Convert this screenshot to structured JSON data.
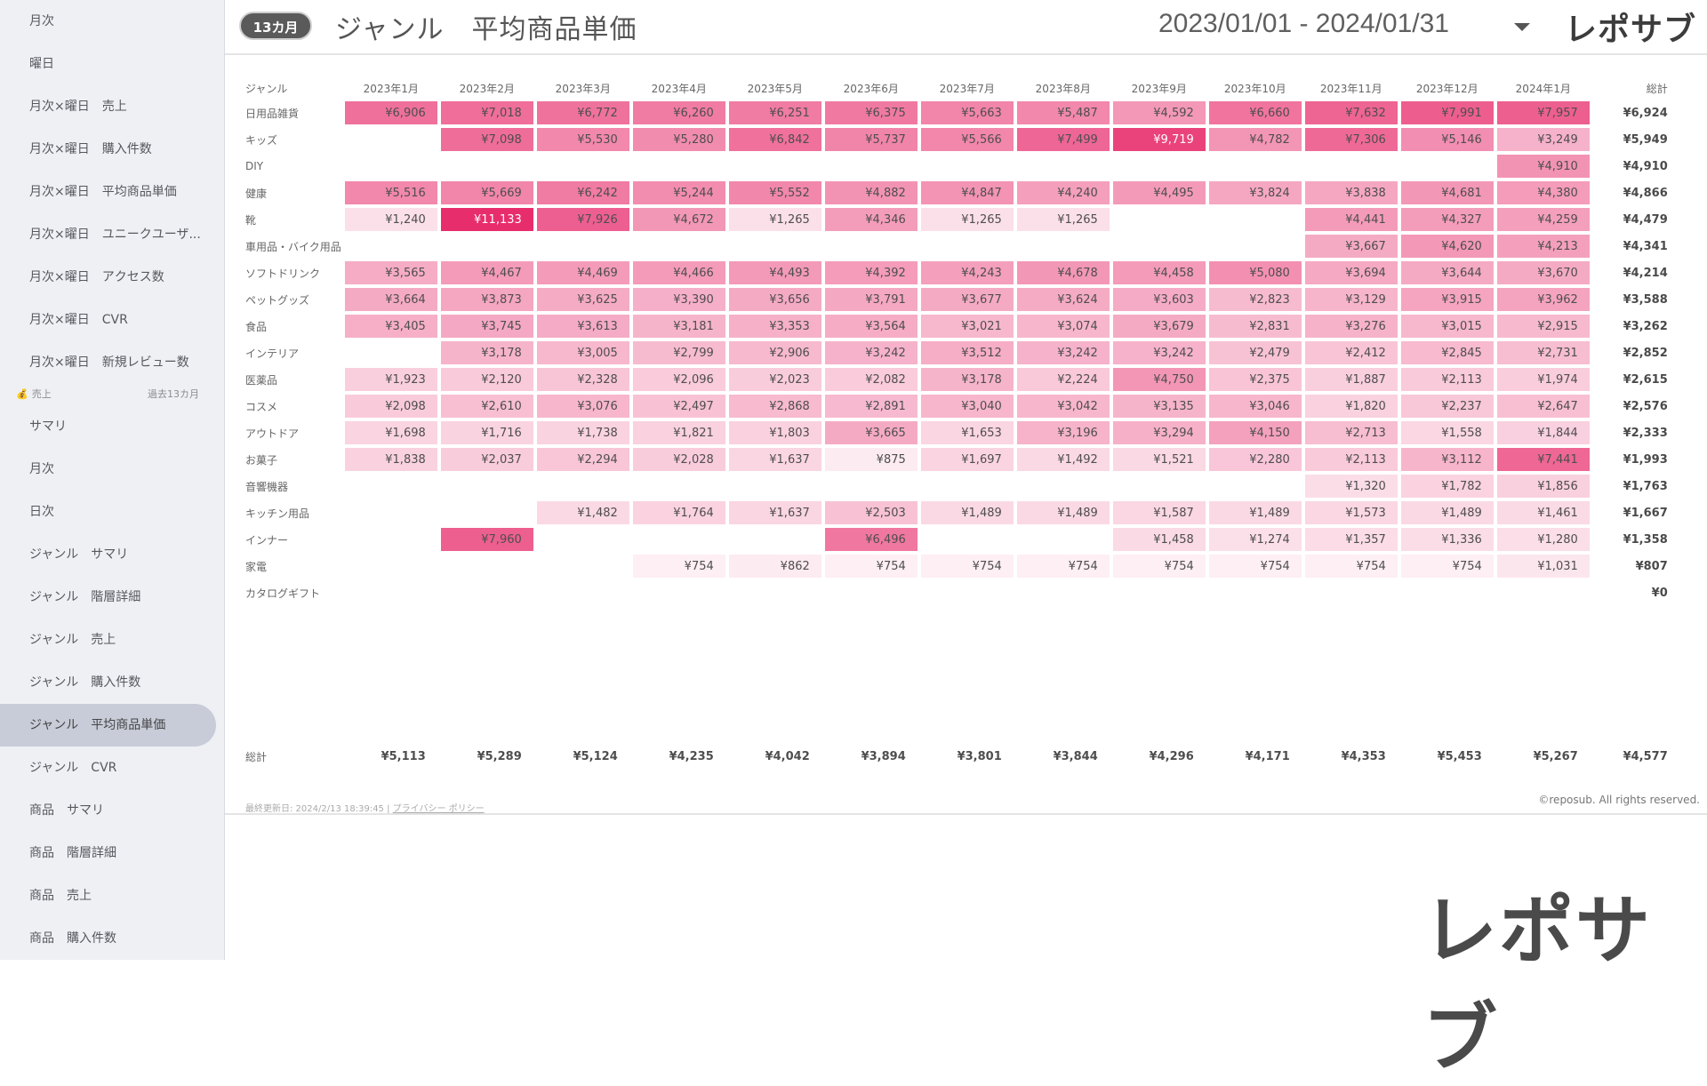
{
  "sidebar": {
    "items_top": [
      {
        "label": "月次"
      },
      {
        "label": "曜日"
      },
      {
        "label": "月次×曜日　売上"
      },
      {
        "label": "月次×曜日　購入件数"
      },
      {
        "label": "月次×曜日　平均商品単価"
      },
      {
        "label": "月次×曜日　ユニークユーザ..."
      },
      {
        "label": "月次×曜日　アクセス数"
      },
      {
        "label": "月次×曜日　CVR"
      },
      {
        "label": "月次×曜日　新規レビュー数"
      }
    ],
    "section": {
      "label": "売上",
      "sub": "過去13カ月"
    },
    "items_bottom": [
      {
        "label": "サマリ"
      },
      {
        "label": "月次"
      },
      {
        "label": "日次"
      },
      {
        "label": "ジャンル　サマリ"
      },
      {
        "label": "ジャンル　階層詳細"
      },
      {
        "label": "ジャンル　売上"
      },
      {
        "label": "ジャンル　購入件数"
      },
      {
        "label": "ジャンル　平均商品単価",
        "active": true
      },
      {
        "label": "ジャンル　CVR"
      },
      {
        "label": "商品　サマリ"
      },
      {
        "label": "商品　階層詳細"
      },
      {
        "label": "商品　売上"
      },
      {
        "label": "商品　購入件数"
      }
    ]
  },
  "header": {
    "badge": "13カ月",
    "title": "ジャンル　平均商品単価",
    "date_range": "2023/01/01 - 2024/01/31",
    "brand": "レポサブ"
  },
  "table": {
    "genre_header": "ジャンル",
    "total_header": "総計",
    "months": [
      "2023年1月",
      "2023年2月",
      "2023年3月",
      "2023年4月",
      "2023年5月",
      "2023年6月",
      "2023年7月",
      "2023年8月",
      "2023年9月",
      "2023年10月",
      "2023年11月",
      "2023年12月",
      "2024年1月"
    ],
    "rows": [
      {
        "genre": "日用品雑貨",
        "values": [
          6906,
          7018,
          6772,
          6260,
          6251,
          6375,
          5663,
          5487,
          4592,
          6660,
          7632,
          7991,
          7957
        ],
        "total": "¥6,924"
      },
      {
        "genre": "キッズ",
        "values": [
          null,
          7098,
          5530,
          5280,
          6842,
          5737,
          5566,
          7499,
          9719,
          4782,
          7306,
          5146,
          3249
        ],
        "total": "¥5,949"
      },
      {
        "genre": "DIY",
        "values": [
          null,
          null,
          null,
          null,
          null,
          null,
          null,
          null,
          null,
          null,
          null,
          null,
          4910
        ],
        "total": "¥4,910"
      },
      {
        "genre": "健康",
        "values": [
          5516,
          5669,
          6242,
          5244,
          5552,
          4882,
          4847,
          4240,
          4495,
          3824,
          3838,
          4681,
          4380
        ],
        "total": "¥4,866"
      },
      {
        "genre": "靴",
        "values": [
          1240,
          11133,
          7926,
          4672,
          1265,
          4346,
          1265,
          1265,
          null,
          null,
          4441,
          4327,
          4259
        ],
        "total": "¥4,479"
      },
      {
        "genre": "車用品・バイク用品",
        "values": [
          null,
          null,
          null,
          null,
          null,
          null,
          null,
          null,
          null,
          null,
          3667,
          4620,
          4213
        ],
        "total": "¥4,341"
      },
      {
        "genre": "ソフトドリンク",
        "values": [
          3565,
          4467,
          4469,
          4466,
          4493,
          4392,
          4243,
          4678,
          4458,
          5080,
          3694,
          3644,
          3670
        ],
        "total": "¥4,214"
      },
      {
        "genre": "ペットグッズ",
        "values": [
          3664,
          3873,
          3625,
          3390,
          3656,
          3791,
          3677,
          3624,
          3603,
          2823,
          3129,
          3915,
          3962
        ],
        "total": "¥3,588"
      },
      {
        "genre": "食品",
        "values": [
          3405,
          3745,
          3613,
          3181,
          3353,
          3564,
          3021,
          3074,
          3679,
          2831,
          3276,
          3015,
          2915
        ],
        "total": "¥3,262"
      },
      {
        "genre": "インテリア",
        "values": [
          null,
          3178,
          3005,
          2799,
          2906,
          3242,
          3512,
          3242,
          3242,
          2479,
          2412,
          2845,
          2731
        ],
        "total": "¥2,852"
      },
      {
        "genre": "医薬品",
        "values": [
          1923,
          2120,
          2328,
          2096,
          2023,
          2082,
          3178,
          2224,
          4750,
          2375,
          1887,
          2113,
          1974
        ],
        "total": "¥2,615"
      },
      {
        "genre": "コスメ",
        "values": [
          2098,
          2610,
          3076,
          2497,
          2868,
          2891,
          3040,
          3042,
          3135,
          3046,
          1820,
          2237,
          2647
        ],
        "total": "¥2,576"
      },
      {
        "genre": "アウトドア",
        "values": [
          1698,
          1716,
          1738,
          1821,
          1803,
          3665,
          1653,
          3196,
          3294,
          4150,
          2713,
          1558,
          1844
        ],
        "total": "¥2,333"
      },
      {
        "genre": "お菓子",
        "values": [
          1838,
          2037,
          2294,
          2028,
          1637,
          875,
          1697,
          1492,
          1521,
          2280,
          2113,
          3112,
          7441
        ],
        "total": "¥1,993"
      },
      {
        "genre": "音響機器",
        "values": [
          null,
          null,
          null,
          null,
          null,
          null,
          null,
          null,
          null,
          null,
          1320,
          1782,
          1856
        ],
        "total": "¥1,763"
      },
      {
        "genre": "キッチン用品",
        "values": [
          null,
          null,
          1482,
          1764,
          1637,
          2503,
          1489,
          1489,
          1587,
          1489,
          1573,
          1489,
          1461
        ],
        "total": "¥1,667"
      },
      {
        "genre": "インナー",
        "values": [
          null,
          7960,
          null,
          null,
          null,
          6496,
          null,
          null,
          1458,
          1274,
          1357,
          1336,
          1280
        ],
        "total": "¥1,358"
      },
      {
        "genre": "家電",
        "values": [
          null,
          null,
          null,
          754,
          862,
          754,
          754,
          754,
          754,
          754,
          754,
          754,
          1031
        ],
        "total": "¥807"
      },
      {
        "genre": "カタログギフト",
        "values": [
          null,
          null,
          null,
          null,
          null,
          null,
          null,
          null,
          null,
          null,
          null,
          null,
          null
        ],
        "total": "¥0"
      }
    ],
    "total_row": {
      "label": "総計",
      "values": [
        "¥5,113",
        "¥5,289",
        "¥5,124",
        "¥4,235",
        "¥4,042",
        "¥3,894",
        "¥3,801",
        "¥3,844",
        "¥4,296",
        "¥4,171",
        "¥4,353",
        "¥5,453",
        "¥5,267"
      ],
      "total": "¥4,577"
    }
  },
  "footer": {
    "updated": "最終更新日: 2024/2/13 18:39:45",
    "separator": "|",
    "privacy": "プライバシー ポリシー",
    "copyright": "©reposub. All rights reserved."
  },
  "watermark": "レポサブ",
  "colors": {
    "heat_low": "#fdf0f4",
    "heat_high": "#e8336f",
    "sidebar_bg": "#eef0f3",
    "active_bg": "#c8ccd8"
  }
}
